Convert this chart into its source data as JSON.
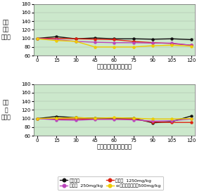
{
  "x": [
    0,
    15,
    30,
    45,
    60,
    75,
    90,
    105,
    120
  ],
  "top_lines": [
    {
      "name": "注射用水",
      "color": "#111111",
      "y": [
        100,
        104,
        99,
        101,
        99,
        99,
        98,
        99,
        97
      ]
    },
    {
      "name": "ヒハツ 1250mg/kg",
      "color": "#dd2211",
      "y": [
        100,
        100,
        99,
        98,
        97,
        93,
        90,
        88,
        84
      ]
    },
    {
      "name": "ヒハツ 250mg/kg",
      "color": "#bb44bb",
      "y": [
        100,
        97,
        93,
        91,
        90,
        90,
        89,
        89,
        84
      ]
    },
    {
      "name": "α-トコフェロール500mg/kg",
      "color": "#eecc00",
      "y": [
        99,
        95,
        93,
        80,
        80,
        80,
        83,
        84,
        82
      ]
    }
  ],
  "bottom_lines": [
    {
      "name": "注射用水",
      "color": "#111111",
      "y": [
        100,
        105,
        102,
        101,
        101,
        101,
        90,
        93,
        106
      ]
    },
    {
      "name": "ヒハツ 1250mg/kg",
      "color": "#dd2211",
      "y": [
        100,
        99,
        99,
        99,
        99,
        99,
        92,
        91,
        91
      ]
    },
    {
      "name": "ヒハツ 250mg/kg",
      "color": "#bb44bb",
      "y": [
        100,
        97,
        96,
        98,
        98,
        97,
        94,
        95,
        99
      ]
    },
    {
      "name": "α-トコフェロール500mg/kg",
      "color": "#eecc00",
      "y": [
        100,
        101,
        102,
        101,
        102,
        101,
        99,
        99,
        100
      ]
    }
  ],
  "ylim": [
    60,
    180
  ],
  "yticks": [
    60,
    80,
    100,
    120,
    140,
    160,
    180
  ],
  "xticks": [
    0,
    15,
    30,
    45,
    60,
    75,
    90,
    105,
    120
  ],
  "xlabel": "投与経過後時間（分）",
  "ylabel_top": "平均\n血圧\n（％）",
  "ylabel_bottom": "心拍\n数\n（％）",
  "bg_color": "#cce8cc",
  "legend": [
    {
      "name": "注射用水",
      "color": "#111111"
    },
    {
      "name": "ヒハツ  250mg/kg",
      "color": "#bb44bb"
    },
    {
      "name": "ヒハツ  1250mg/kg",
      "color": "#dd2211"
    },
    {
      "name": "α-トコフェロール500mg/kg",
      "color": "#eecc00"
    }
  ]
}
